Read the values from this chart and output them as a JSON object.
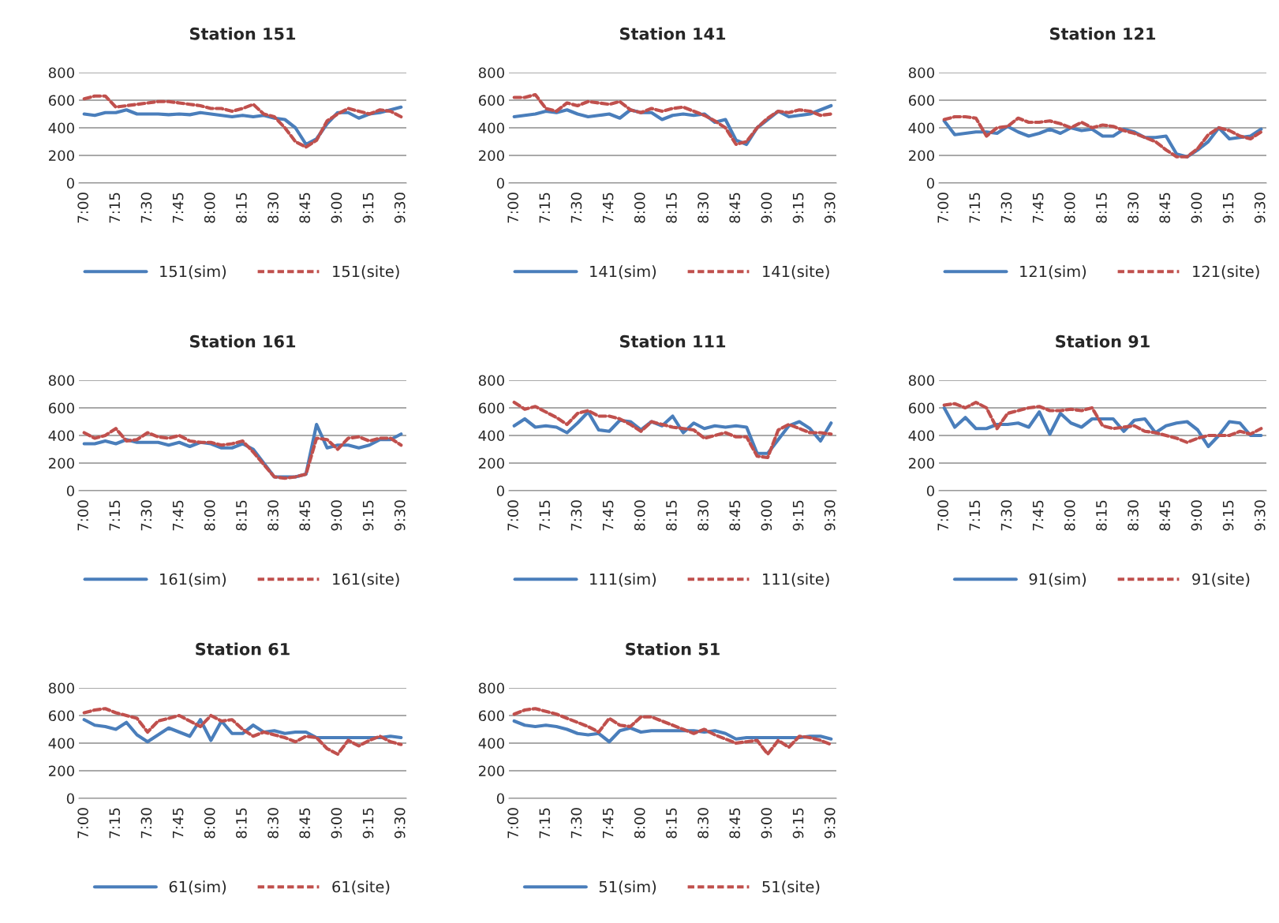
{
  "chart_data": [
    {
      "type": "line",
      "title": "Station 151",
      "categories": [
        "7:00",
        null,
        null,
        "7:15",
        null,
        null,
        "7:30",
        null,
        null,
        "7:45",
        null,
        null,
        "8:00",
        null,
        null,
        "8:15",
        null,
        null,
        "8:30",
        null,
        null,
        "8:45",
        null,
        null,
        "9:00",
        null,
        null,
        "9:15",
        null,
        null,
        "9:30"
      ],
      "ylim": [
        0,
        800
      ],
      "yticks": [
        0,
        200,
        400,
        600,
        800
      ],
      "grid": "y",
      "legend": "bottom",
      "series": [
        {
          "name": "151(sim)",
          "color": "#4a7ebb",
          "line_style": "solid",
          "values": [
            500,
            490,
            510,
            510,
            530,
            500,
            500,
            500,
            495,
            500,
            495,
            510,
            500,
            490,
            480,
            490,
            480,
            490,
            470,
            460,
            400,
            280,
            320,
            430,
            510,
            510,
            470,
            500,
            510,
            530,
            550
          ]
        },
        {
          "name": "151(site)",
          "color": "#c0504d",
          "line_style": "dashed",
          "values": [
            610,
            630,
            630,
            550,
            560,
            570,
            580,
            590,
            590,
            580,
            570,
            560,
            540,
            540,
            520,
            540,
            570,
            500,
            480,
            400,
            300,
            260,
            310,
            450,
            500,
            540,
            520,
            500,
            530,
            520,
            480
          ]
        }
      ]
    },
    {
      "type": "line",
      "title": "Station 141",
      "categories": [
        "7:00",
        null,
        null,
        "7:15",
        null,
        null,
        "7:30",
        null,
        null,
        "7:45",
        null,
        null,
        "8:00",
        null,
        null,
        "8:15",
        null,
        null,
        "8:30",
        null,
        null,
        "8:45",
        null,
        null,
        "9:00",
        null,
        null,
        "9:15",
        null,
        null,
        "9:30"
      ],
      "ylim": [
        0,
        800
      ],
      "yticks": [
        0,
        200,
        400,
        600,
        800
      ],
      "grid": "y",
      "legend": "bottom",
      "series": [
        {
          "name": "141(sim)",
          "color": "#4a7ebb",
          "line_style": "solid",
          "values": [
            480,
            490,
            500,
            520,
            510,
            530,
            500,
            480,
            490,
            500,
            470,
            530,
            510,
            510,
            460,
            490,
            500,
            490,
            500,
            440,
            460,
            310,
            280,
            400,
            460,
            520,
            480,
            490,
            500,
            530,
            560
          ]
        },
        {
          "name": "141(site)",
          "color": "#c0504d",
          "line_style": "dashed",
          "values": [
            620,
            620,
            640,
            540,
            520,
            580,
            560,
            590,
            580,
            570,
            590,
            530,
            510,
            540,
            520,
            540,
            550,
            520,
            490,
            450,
            400,
            280,
            300,
            400,
            470,
            520,
            510,
            530,
            520,
            490,
            500
          ]
        }
      ]
    },
    {
      "type": "line",
      "title": "Station 121",
      "categories": [
        "7:00",
        null,
        null,
        "7:15",
        null,
        null,
        "7:30",
        null,
        null,
        "7:45",
        null,
        null,
        "8:00",
        null,
        null,
        "8:15",
        null,
        null,
        "8:30",
        null,
        null,
        "8:45",
        null,
        null,
        "9:00",
        null,
        null,
        "9:15",
        null,
        null,
        "9:30"
      ],
      "ylim": [
        0,
        800
      ],
      "yticks": [
        0,
        200,
        400,
        600,
        800
      ],
      "grid": "y",
      "legend": "bottom",
      "series": [
        {
          "name": "121(sim)",
          "color": "#4a7ebb",
          "line_style": "solid",
          "values": [
            450,
            350,
            360,
            370,
            370,
            360,
            410,
            370,
            340,
            360,
            390,
            360,
            400,
            380,
            390,
            340,
            340,
            390,
            370,
            330,
            330,
            340,
            210,
            190,
            240,
            300,
            400,
            320,
            330,
            340,
            390
          ]
        },
        {
          "name": "121(site)",
          "color": "#c0504d",
          "line_style": "dashed",
          "values": [
            460,
            480,
            480,
            470,
            340,
            400,
            410,
            470,
            440,
            440,
            450,
            430,
            400,
            440,
            400,
            420,
            410,
            380,
            360,
            330,
            300,
            240,
            190,
            190,
            250,
            350,
            400,
            380,
            340,
            320,
            370
          ]
        }
      ]
    },
    {
      "type": "line",
      "title": "Station 161",
      "categories": [
        "7:00",
        null,
        null,
        "7:15",
        null,
        null,
        "7:30",
        null,
        null,
        "7:45",
        null,
        null,
        "8:00",
        null,
        null,
        "8:15",
        null,
        null,
        "8:30",
        null,
        null,
        "8:45",
        null,
        null,
        "9:00",
        null,
        null,
        "9:15",
        null,
        null,
        "9:30"
      ],
      "ylim": [
        0,
        800
      ],
      "yticks": [
        0,
        200,
        400,
        600,
        800
      ],
      "grid": "y",
      "legend": "bottom",
      "series": [
        {
          "name": "161(sim)",
          "color": "#4a7ebb",
          "line_style": "solid",
          "values": [
            340,
            340,
            360,
            340,
            370,
            350,
            350,
            350,
            330,
            350,
            320,
            350,
            340,
            310,
            310,
            340,
            300,
            200,
            100,
            100,
            100,
            120,
            480,
            310,
            330,
            330,
            310,
            330,
            370,
            370,
            410
          ]
        },
        {
          "name": "161(site)",
          "color": "#c0504d",
          "line_style": "dashed",
          "values": [
            420,
            380,
            400,
            450,
            360,
            370,
            420,
            390,
            380,
            400,
            360,
            350,
            350,
            330,
            340,
            360,
            280,
            190,
            100,
            90,
            100,
            120,
            380,
            370,
            300,
            380,
            390,
            360,
            380,
            380,
            330
          ]
        }
      ]
    },
    {
      "type": "line",
      "title": "Station 111",
      "categories": [
        "7:00",
        null,
        null,
        "7:15",
        null,
        null,
        "7:30",
        null,
        null,
        "7:45",
        null,
        null,
        "8:00",
        null,
        null,
        "8:15",
        null,
        null,
        "8:30",
        null,
        null,
        "8:45",
        null,
        null,
        "9:00",
        null,
        null,
        "9:15",
        null,
        null,
        "9:30"
      ],
      "ylim": [
        0,
        800
      ],
      "yticks": [
        0,
        200,
        400,
        600,
        800
      ],
      "grid": "y",
      "legend": "bottom",
      "series": [
        {
          "name": "111(sim)",
          "color": "#4a7ebb",
          "line_style": "solid",
          "values": [
            470,
            520,
            460,
            470,
            460,
            420,
            490,
            570,
            440,
            430,
            510,
            500,
            440,
            500,
            470,
            540,
            420,
            490,
            450,
            470,
            460,
            470,
            460,
            270,
            270,
            370,
            470,
            500,
            450,
            360,
            490
          ]
        },
        {
          "name": "111(site)",
          "color": "#c0504d",
          "line_style": "dashed",
          "values": [
            640,
            590,
            610,
            570,
            530,
            480,
            560,
            580,
            540,
            540,
            520,
            480,
            430,
            500,
            480,
            460,
            450,
            440,
            380,
            400,
            420,
            390,
            390,
            250,
            240,
            440,
            480,
            450,
            420,
            420,
            410
          ]
        }
      ]
    },
    {
      "type": "line",
      "title": "Station 91",
      "categories": [
        "7:00",
        null,
        null,
        "7:15",
        null,
        null,
        "7:30",
        null,
        null,
        "7:45",
        null,
        null,
        "8:00",
        null,
        null,
        "8:15",
        null,
        null,
        "8:30",
        null,
        null,
        "8:45",
        null,
        null,
        "9:00",
        null,
        null,
        "9:15",
        null,
        null,
        "9:30"
      ],
      "ylim": [
        0,
        800
      ],
      "yticks": [
        0,
        200,
        400,
        600,
        800
      ],
      "grid": "y",
      "legend": "bottom",
      "series": [
        {
          "name": "91(sim)",
          "color": "#4a7ebb",
          "line_style": "solid",
          "values": [
            600,
            460,
            530,
            450,
            450,
            480,
            480,
            490,
            460,
            570,
            410,
            560,
            490,
            460,
            520,
            520,
            520,
            430,
            510,
            520,
            420,
            470,
            490,
            500,
            440,
            320,
            400,
            500,
            490,
            400,
            400
          ]
        },
        {
          "name": "91(site)",
          "color": "#c0504d",
          "line_style": "dashed",
          "values": [
            620,
            630,
            600,
            640,
            600,
            450,
            560,
            580,
            600,
            610,
            580,
            580,
            590,
            580,
            600,
            470,
            450,
            460,
            470,
            430,
            420,
            400,
            380,
            350,
            380,
            400,
            400,
            400,
            430,
            410,
            450
          ]
        }
      ]
    },
    {
      "type": "line",
      "title": "Station 61",
      "categories": [
        "7:00",
        null,
        null,
        "7:15",
        null,
        null,
        "7:30",
        null,
        null,
        "7:45",
        null,
        null,
        "8:00",
        null,
        null,
        "8:15",
        null,
        null,
        "8:30",
        null,
        null,
        "8:45",
        null,
        null,
        "9:00",
        null,
        null,
        "9:15",
        null,
        null,
        "9:30"
      ],
      "ylim": [
        0,
        800
      ],
      "yticks": [
        0,
        200,
        400,
        600,
        800
      ],
      "grid": "y",
      "legend": "bottom",
      "series": [
        {
          "name": "61(sim)",
          "color": "#4a7ebb",
          "line_style": "solid",
          "values": [
            570,
            530,
            520,
            500,
            550,
            460,
            410,
            460,
            510,
            480,
            450,
            570,
            420,
            560,
            470,
            470,
            530,
            480,
            490,
            470,
            480,
            480,
            440,
            440,
            440,
            440,
            440,
            440,
            440,
            450,
            440
          ]
        },
        {
          "name": "61(site)",
          "color": "#c0504d",
          "line_style": "dashed",
          "values": [
            620,
            640,
            650,
            620,
            600,
            580,
            480,
            560,
            580,
            600,
            560,
            520,
            600,
            560,
            570,
            500,
            450,
            480,
            460,
            440,
            410,
            450,
            440,
            360,
            320,
            420,
            380,
            420,
            450,
            410,
            390
          ]
        }
      ]
    },
    {
      "type": "line",
      "title": "Station 51",
      "categories": [
        "7:00",
        null,
        null,
        "7:15",
        null,
        null,
        "7:30",
        null,
        null,
        "7:45",
        null,
        null,
        "8:00",
        null,
        null,
        "8:15",
        null,
        null,
        "8:30",
        null,
        null,
        "8:45",
        null,
        null,
        "9:00",
        null,
        null,
        "9:15",
        null,
        null,
        "9:30"
      ],
      "ylim": [
        0,
        800
      ],
      "yticks": [
        0,
        200,
        400,
        600,
        800
      ],
      "grid": "y",
      "legend": "bottom",
      "series": [
        {
          "name": "51(sim)",
          "color": "#4a7ebb",
          "line_style": "solid",
          "values": [
            560,
            530,
            520,
            530,
            520,
            500,
            470,
            460,
            470,
            410,
            490,
            510,
            480,
            490,
            490,
            490,
            490,
            490,
            480,
            490,
            470,
            430,
            440,
            440,
            440,
            440,
            440,
            440,
            450,
            450,
            430
          ]
        },
        {
          "name": "51(site)",
          "color": "#c0504d",
          "line_style": "dashed",
          "values": [
            610,
            640,
            650,
            630,
            610,
            580,
            550,
            520,
            480,
            580,
            530,
            520,
            590,
            590,
            560,
            530,
            500,
            470,
            500,
            460,
            430,
            400,
            410,
            420,
            320,
            420,
            370,
            450,
            440,
            420,
            390
          ]
        }
      ]
    }
  ]
}
